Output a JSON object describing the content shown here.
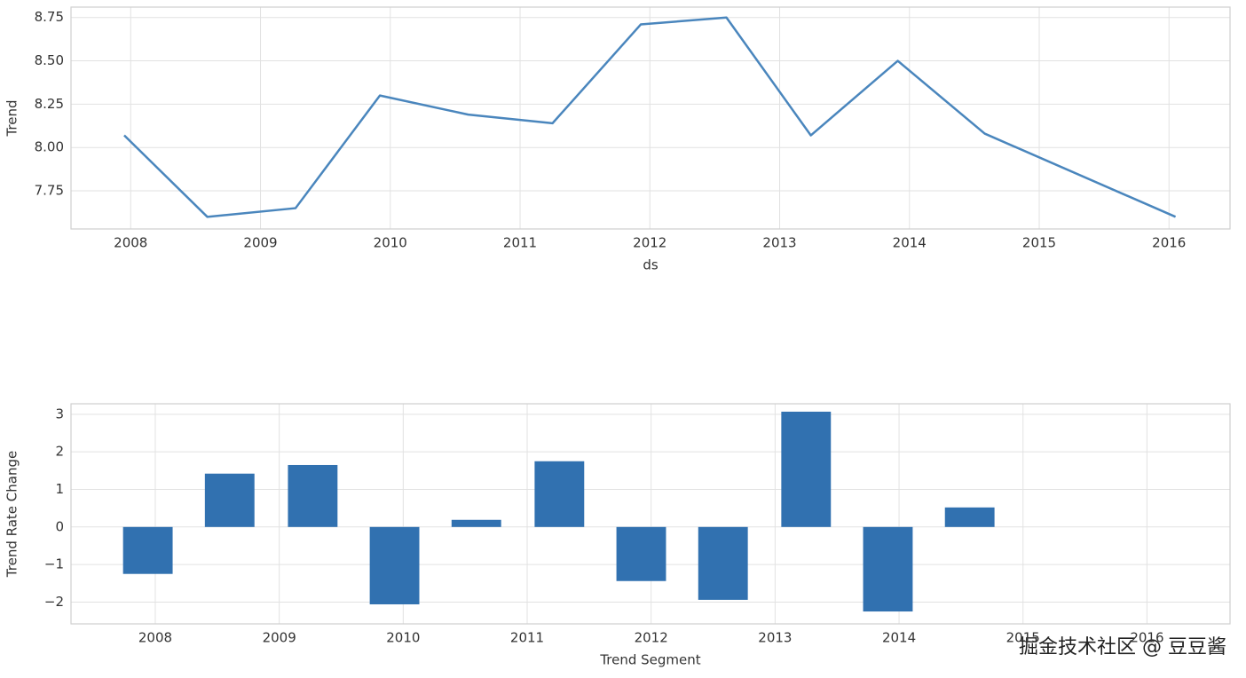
{
  "chart_data": [
    {
      "type": "line",
      "x_label": "ds",
      "y_label": "Trend",
      "x": [
        2007.95,
        2008.59,
        2009.27,
        2009.92,
        2010.6,
        2011.25,
        2011.93,
        2012.59,
        2013.24,
        2013.91,
        2014.58,
        2016.05
      ],
      "series": [
        {
          "name": "Trend",
          "color": "#4a86bd",
          "values": [
            8.07,
            7.6,
            7.65,
            8.3,
            8.19,
            8.14,
            8.71,
            8.75,
            8.07,
            8.5,
            8.08,
            7.6
          ]
        }
      ],
      "xlim": [
        2007.54,
        2016.47
      ],
      "xticks": [
        2008,
        2009,
        2010,
        2011,
        2012,
        2013,
        2014,
        2015,
        2016
      ],
      "ylim": [
        7.53,
        8.81
      ],
      "yticks": [
        {
          "value": 7.75,
          "label": "7.75"
        },
        {
          "value": 8,
          "label": "8.00"
        },
        {
          "value": 8.25,
          "label": "8.25"
        },
        {
          "value": 8.5,
          "label": "8.50"
        },
        {
          "value": 8.75,
          "label": "8.75"
        }
      ],
      "grid": true
    },
    {
      "type": "bar",
      "x_label": "Trend Segment",
      "y_label": "Trend Rate Change",
      "x": [
        2007.94,
        2008.6,
        2009.27,
        2009.93,
        2010.59,
        2011.26,
        2011.92,
        2012.58,
        2013.25,
        2013.91,
        2014.57
      ],
      "series": [
        {
          "name": "Trend Rate Change",
          "color": "#3171b0",
          "values": [
            -1.25,
            1.42,
            1.65,
            -2.06,
            0.19,
            1.75,
            -1.44,
            -1.94,
            3.07,
            -2.25,
            0.52
          ]
        }
      ],
      "xlim": [
        2007.32,
        2016.67
      ],
      "xticks": [
        2008,
        2009,
        2010,
        2011,
        2012,
        2013,
        2014,
        2015,
        2016
      ],
      "ylim": [
        -2.58,
        3.28
      ],
      "yticks": [
        {
          "value": -2,
          "label": "−2"
        },
        {
          "value": -1,
          "label": "−1"
        },
        0,
        1,
        2,
        3
      ],
      "grid": true
    }
  ],
  "watermark": "掘金技术社区 @ 豆豆酱"
}
